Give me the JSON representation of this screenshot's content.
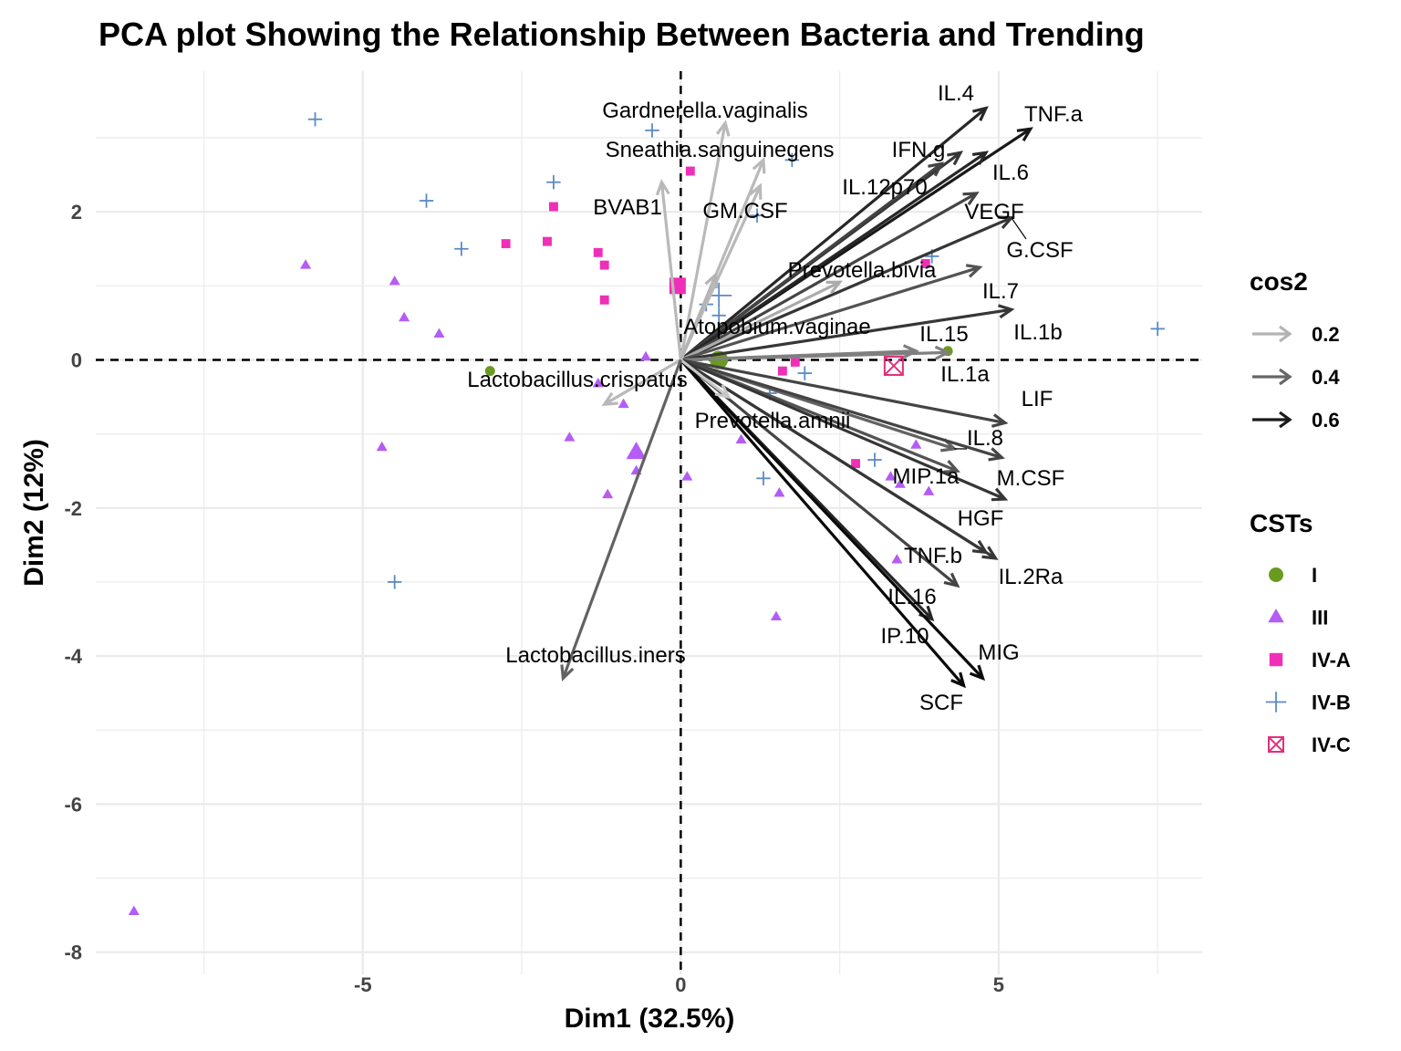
{
  "chart_data": {
    "type": "scatter",
    "title": "PCA plot Showing the Relationship Between Bacteria and Trending",
    "xlabel": "Dim1 (32.5%)",
    "ylabel": "Dim2 (12%)",
    "xlim": [
      -9.2,
      8.2
    ],
    "ylim": [
      -8.3,
      3.9
    ],
    "x_ticks": [
      -5,
      0,
      5
    ],
    "y_ticks": [
      2,
      0,
      -2,
      -4,
      -6,
      -8
    ],
    "x_tick_labels": [
      "-5",
      "0",
      "5"
    ],
    "y_tick_labels": [
      "2",
      "0",
      "-2",
      "-4",
      "-6",
      "-8"
    ],
    "grid": true,
    "legend_position": "right",
    "legend": {
      "cos2": {
        "title": "cos2",
        "entries": [
          {
            "label": "0.2",
            "color": "#b3b3b3"
          },
          {
            "label": "0.4",
            "color": "#666666"
          },
          {
            "label": "0.6",
            "color": "#1a1a1a"
          }
        ]
      },
      "csts": {
        "title": "CSTs",
        "entries": [
          {
            "label": "I",
            "shape": "circle",
            "color": "#6a9a1f"
          },
          {
            "label": "III",
            "shape": "triangle",
            "color": "#b45cf5"
          },
          {
            "label": "IV-A",
            "shape": "square",
            "color": "#f02fb8"
          },
          {
            "label": "IV-B",
            "shape": "plus",
            "color": "#5a8ac6"
          },
          {
            "label": "IV-C",
            "shape": "boxx",
            "color": "#e0307a"
          }
        ]
      }
    },
    "groups": [
      {
        "name": "I",
        "shape": "circle",
        "color": "#6a9a1f",
        "points": [
          [
            -3.0,
            -0.15
          ],
          [
            4.2,
            0.12
          ]
        ],
        "centroid": [
          0.6,
          0.0
        ]
      },
      {
        "name": "III",
        "shape": "triangle",
        "color": "#b45cf5",
        "points": [
          [
            -5.9,
            1.28
          ],
          [
            -4.5,
            1.06
          ],
          [
            -4.35,
            0.57
          ],
          [
            -3.8,
            0.35
          ],
          [
            -0.55,
            0.04
          ],
          [
            -1.3,
            -0.32
          ],
          [
            -0.9,
            -0.6
          ],
          [
            -1.75,
            -1.05
          ],
          [
            -4.7,
            -1.18
          ],
          [
            -0.7,
            -1.5
          ],
          [
            -1.15,
            -1.82
          ],
          [
            0.1,
            -1.58
          ],
          [
            0.95,
            -1.08
          ],
          [
            1.55,
            -1.8
          ],
          [
            1.5,
            -3.47
          ],
          [
            3.3,
            -1.58
          ],
          [
            3.45,
            -1.68
          ],
          [
            3.7,
            -1.15
          ],
          [
            3.9,
            -1.78
          ],
          [
            3.4,
            -2.7
          ],
          [
            -8.6,
            -7.45
          ]
        ],
        "centroid": [
          -0.7,
          -1.25
        ]
      },
      {
        "name": "IV-A",
        "shape": "square",
        "color": "#f02fb8",
        "points": [
          [
            0.15,
            2.55
          ],
          [
            -2.0,
            2.07
          ],
          [
            -2.75,
            1.57
          ],
          [
            -2.1,
            1.6
          ],
          [
            -1.3,
            1.45
          ],
          [
            -1.2,
            1.28
          ],
          [
            -1.2,
            0.81
          ],
          [
            1.6,
            -0.15
          ],
          [
            1.8,
            -0.03
          ],
          [
            2.75,
            -1.4
          ],
          [
            3.85,
            1.3
          ]
        ],
        "centroid": [
          -0.05,
          1.0
        ]
      },
      {
        "name": "IV-B",
        "shape": "plus",
        "color": "#5a8ac6",
        "points": [
          [
            -5.75,
            3.25
          ],
          [
            -0.45,
            3.1
          ],
          [
            -2.0,
            2.4
          ],
          [
            -4.0,
            2.15
          ],
          [
            -3.45,
            1.5
          ],
          [
            1.75,
            2.7
          ],
          [
            1.2,
            1.95
          ],
          [
            3.95,
            1.4
          ],
          [
            0.4,
            0.75
          ],
          [
            0.6,
            0.6
          ],
          [
            1.4,
            -0.45
          ],
          [
            1.95,
            -0.18
          ],
          [
            1.3,
            -1.6
          ],
          [
            3.05,
            -1.35
          ],
          [
            -4.5,
            -3.0
          ],
          [
            7.5,
            0.42
          ]
        ],
        "centroid": [
          0.6,
          0.87
        ]
      },
      {
        "name": "IV-C",
        "shape": "boxx",
        "color": "#e0307a",
        "points": [],
        "centroid": [
          3.35,
          -0.08
        ]
      }
    ],
    "variables": [
      {
        "name": "IL.4",
        "x": 4.8,
        "y": 3.4,
        "cos2": 0.6
      },
      {
        "name": "TNF.a",
        "x": 5.5,
        "y": 3.12,
        "cos2": 0.65
      },
      {
        "name": "IFN.g",
        "x": 4.4,
        "y": 2.8,
        "cos2": 0.55
      },
      {
        "name": "IL.12p70",
        "x": 4.1,
        "y": 2.65,
        "cos2": 0.5
      },
      {
        "name": "IL.6",
        "x": 4.8,
        "y": 2.8,
        "cos2": 0.6
      },
      {
        "name": "VEGF",
        "x": 4.65,
        "y": 2.25,
        "cos2": 0.5
      },
      {
        "name": "G.CSF",
        "x": 5.2,
        "y": 1.92,
        "cos2": 0.55
      },
      {
        "name": "Prevotella.bivia",
        "x": 2.5,
        "y": 1.05,
        "cos2": 0.15
      },
      {
        "name": "IL.7",
        "x": 4.7,
        "y": 1.25,
        "cos2": 0.45
      },
      {
        "name": "IL.1b",
        "x": 5.2,
        "y": 0.68,
        "cos2": 0.55
      },
      {
        "name": "IL.15",
        "x": 3.7,
        "y": 0.12,
        "cos2": 0.3
      },
      {
        "name": "IL.1a",
        "x": 4.2,
        "y": 0.1,
        "cos2": 0.3
      },
      {
        "name": "LIF",
        "x": 5.1,
        "y": -0.85,
        "cos2": 0.5
      },
      {
        "name": "IL.8",
        "x": 4.3,
        "y": -1.2,
        "cos2": 0.4
      },
      {
        "name": "M.CSF",
        "x": 5.05,
        "y": -1.32,
        "cos2": 0.5
      },
      {
        "name": "MIP.1a",
        "x": 4.35,
        "y": -1.5,
        "cos2": 0.45
      },
      {
        "name": "HGF",
        "x": 5.1,
        "y": -1.88,
        "cos2": 0.55
      },
      {
        "name": "IL.2Ra",
        "x": 4.95,
        "y": -2.68,
        "cos2": 0.55
      },
      {
        "name": "TNF.b",
        "x": 4.8,
        "y": -2.6,
        "cos2": 0.55
      },
      {
        "name": "IL.16",
        "x": 4.35,
        "y": -3.05,
        "cos2": 0.5
      },
      {
        "name": "IP.10",
        "x": 3.95,
        "y": -3.5,
        "cos2": 0.6
      },
      {
        "name": "MIG",
        "x": 4.75,
        "y": -4.3,
        "cos2": 0.7
      },
      {
        "name": "SCF",
        "x": 4.45,
        "y": -4.4,
        "cos2": 0.7
      },
      {
        "name": "Gardnerella.vaginalis",
        "x": 0.7,
        "y": 3.2,
        "cos2": 0.1
      },
      {
        "name": "Sneathia.sanguinegens",
        "x": 1.3,
        "y": 2.7,
        "cos2": 0.1
      },
      {
        "name": "BVAB1",
        "x": -0.3,
        "y": 2.4,
        "cos2": 0.1
      },
      {
        "name": "GM.CSF",
        "x": 1.25,
        "y": 2.35,
        "cos2": 0.1
      },
      {
        "name": "Atopobium.vaginae",
        "x": 0.55,
        "y": 1.15,
        "cos2": 0.12
      },
      {
        "name": "Lactobacillus.crispatus",
        "x": -1.2,
        "y": -0.6,
        "cos2": 0.1
      },
      {
        "name": "Prevotella.amnii",
        "x": 0.75,
        "y": -0.5,
        "cos2": 0.05
      },
      {
        "name": "Lactobacillus.iners",
        "x": -1.85,
        "y": -4.3,
        "cos2": 0.4
      }
    ]
  }
}
